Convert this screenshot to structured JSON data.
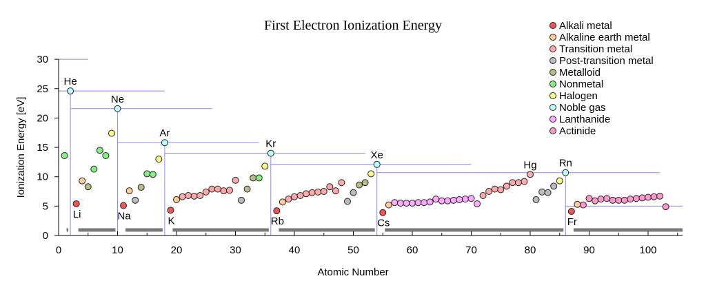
{
  "chart_data": {
    "type": "scatter",
    "title": "First Electron Ionization Energy",
    "xlabel": "Atomic Number",
    "ylabel": "Ionization Energy [eV]",
    "xlim": [
      0,
      105
    ],
    "ylim": [
      0,
      30
    ],
    "xticks": [
      0,
      10,
      20,
      30,
      40,
      50,
      60,
      70,
      80,
      90,
      100
    ],
    "yticks": [
      0,
      5,
      10,
      15,
      20,
      25,
      30
    ],
    "legend_position": "top-right",
    "categories": [
      {
        "key": "alkali",
        "name": "Alkali metal",
        "color": "#ee5555"
      },
      {
        "key": "alkaline",
        "name": "Alkaline earth metal",
        "color": "#ffcc99"
      },
      {
        "key": "transition",
        "name": "Transition metal",
        "color": "#ffaaaa"
      },
      {
        "key": "post",
        "name": "Post-transition metal",
        "color": "#bbbbbb"
      },
      {
        "key": "metalloid",
        "name": "Metalloid",
        "color": "#bbbb88"
      },
      {
        "key": "nonmetal",
        "name": "Nonmetal",
        "color": "#88ee88"
      },
      {
        "key": "halogen",
        "name": "Halogen",
        "color": "#ffff88"
      },
      {
        "key": "noble",
        "name": "Noble gas",
        "color": "#bbffff"
      },
      {
        "key": "lanthanide",
        "name": "Lanthanide",
        "color": "#ffaaff"
      },
      {
        "key": "actinide",
        "name": "Actinide",
        "color": "#ff99cc"
      }
    ],
    "points": [
      {
        "z": 1,
        "e": 13.6,
        "c": "nonmetal"
      },
      {
        "z": 2,
        "e": 24.6,
        "c": "noble",
        "label": "He"
      },
      {
        "z": 3,
        "e": 5.4,
        "c": "alkali",
        "label": "Li"
      },
      {
        "z": 4,
        "e": 9.3,
        "c": "alkaline"
      },
      {
        "z": 5,
        "e": 8.3,
        "c": "metalloid"
      },
      {
        "z": 6,
        "e": 11.3,
        "c": "nonmetal"
      },
      {
        "z": 7,
        "e": 14.5,
        "c": "nonmetal"
      },
      {
        "z": 8,
        "e": 13.6,
        "c": "nonmetal"
      },
      {
        "z": 9,
        "e": 17.4,
        "c": "halogen"
      },
      {
        "z": 10,
        "e": 21.6,
        "c": "noble",
        "label": "Ne"
      },
      {
        "z": 11,
        "e": 5.1,
        "c": "alkali",
        "label": "Na"
      },
      {
        "z": 12,
        "e": 7.6,
        "c": "alkaline"
      },
      {
        "z": 13,
        "e": 6.0,
        "c": "post"
      },
      {
        "z": 14,
        "e": 8.2,
        "c": "metalloid"
      },
      {
        "z": 15,
        "e": 10.5,
        "c": "nonmetal"
      },
      {
        "z": 16,
        "e": 10.4,
        "c": "nonmetal"
      },
      {
        "z": 17,
        "e": 13.0,
        "c": "halogen"
      },
      {
        "z": 18,
        "e": 15.8,
        "c": "noble",
        "label": "Ar"
      },
      {
        "z": 19,
        "e": 4.3,
        "c": "alkali",
        "label": "K"
      },
      {
        "z": 20,
        "e": 6.1,
        "c": "alkaline"
      },
      {
        "z": 21,
        "e": 6.6,
        "c": "transition"
      },
      {
        "z": 22,
        "e": 6.8,
        "c": "transition"
      },
      {
        "z": 23,
        "e": 6.7,
        "c": "transition"
      },
      {
        "z": 24,
        "e": 6.8,
        "c": "transition"
      },
      {
        "z": 25,
        "e": 7.4,
        "c": "transition"
      },
      {
        "z": 26,
        "e": 7.9,
        "c": "transition"
      },
      {
        "z": 27,
        "e": 7.9,
        "c": "transition"
      },
      {
        "z": 28,
        "e": 7.6,
        "c": "transition"
      },
      {
        "z": 29,
        "e": 7.7,
        "c": "transition"
      },
      {
        "z": 30,
        "e": 9.4,
        "c": "transition"
      },
      {
        "z": 31,
        "e": 6.0,
        "c": "post"
      },
      {
        "z": 32,
        "e": 7.9,
        "c": "metalloid"
      },
      {
        "z": 33,
        "e": 9.8,
        "c": "metalloid"
      },
      {
        "z": 34,
        "e": 9.8,
        "c": "nonmetal"
      },
      {
        "z": 35,
        "e": 11.8,
        "c": "halogen"
      },
      {
        "z": 36,
        "e": 14.0,
        "c": "noble",
        "label": "Kr"
      },
      {
        "z": 37,
        "e": 4.2,
        "c": "alkali",
        "label": "Rb"
      },
      {
        "z": 38,
        "e": 5.7,
        "c": "alkaline"
      },
      {
        "z": 39,
        "e": 6.2,
        "c": "transition"
      },
      {
        "z": 40,
        "e": 6.6,
        "c": "transition"
      },
      {
        "z": 41,
        "e": 6.8,
        "c": "transition"
      },
      {
        "z": 42,
        "e": 7.1,
        "c": "transition"
      },
      {
        "z": 43,
        "e": 7.3,
        "c": "transition"
      },
      {
        "z": 44,
        "e": 7.4,
        "c": "transition"
      },
      {
        "z": 45,
        "e": 7.5,
        "c": "transition"
      },
      {
        "z": 46,
        "e": 8.3,
        "c": "transition"
      },
      {
        "z": 47,
        "e": 7.6,
        "c": "transition"
      },
      {
        "z": 48,
        "e": 9.0,
        "c": "transition"
      },
      {
        "z": 49,
        "e": 5.8,
        "c": "post"
      },
      {
        "z": 50,
        "e": 7.3,
        "c": "post"
      },
      {
        "z": 51,
        "e": 8.6,
        "c": "metalloid"
      },
      {
        "z": 52,
        "e": 9.0,
        "c": "metalloid"
      },
      {
        "z": 53,
        "e": 10.5,
        "c": "halogen"
      },
      {
        "z": 54,
        "e": 12.1,
        "c": "noble",
        "label": "Xe"
      },
      {
        "z": 55,
        "e": 3.9,
        "c": "alkali",
        "label": "Cs"
      },
      {
        "z": 56,
        "e": 5.2,
        "c": "alkaline"
      },
      {
        "z": 57,
        "e": 5.6,
        "c": "lanthanide"
      },
      {
        "z": 58,
        "e": 5.5,
        "c": "lanthanide"
      },
      {
        "z": 59,
        "e": 5.5,
        "c": "lanthanide"
      },
      {
        "z": 60,
        "e": 5.5,
        "c": "lanthanide"
      },
      {
        "z": 61,
        "e": 5.6,
        "c": "lanthanide"
      },
      {
        "z": 62,
        "e": 5.6,
        "c": "lanthanide"
      },
      {
        "z": 63,
        "e": 5.7,
        "c": "lanthanide"
      },
      {
        "z": 64,
        "e": 6.2,
        "c": "lanthanide"
      },
      {
        "z": 65,
        "e": 5.9,
        "c": "lanthanide"
      },
      {
        "z": 66,
        "e": 5.9,
        "c": "lanthanide"
      },
      {
        "z": 67,
        "e": 6.0,
        "c": "lanthanide"
      },
      {
        "z": 68,
        "e": 6.1,
        "c": "lanthanide"
      },
      {
        "z": 69,
        "e": 6.2,
        "c": "lanthanide"
      },
      {
        "z": 70,
        "e": 6.3,
        "c": "lanthanide"
      },
      {
        "z": 71,
        "e": 5.4,
        "c": "lanthanide"
      },
      {
        "z": 72,
        "e": 6.8,
        "c": "transition"
      },
      {
        "z": 73,
        "e": 7.5,
        "c": "transition"
      },
      {
        "z": 74,
        "e": 7.9,
        "c": "transition"
      },
      {
        "z": 75,
        "e": 7.8,
        "c": "transition"
      },
      {
        "z": 76,
        "e": 8.4,
        "c": "transition"
      },
      {
        "z": 77,
        "e": 9.0,
        "c": "transition"
      },
      {
        "z": 78,
        "e": 9.0,
        "c": "transition"
      },
      {
        "z": 79,
        "e": 9.2,
        "c": "transition"
      },
      {
        "z": 80,
        "e": 10.4,
        "c": "transition",
        "label": "Hg"
      },
      {
        "z": 81,
        "e": 6.1,
        "c": "post"
      },
      {
        "z": 82,
        "e": 7.4,
        "c": "post"
      },
      {
        "z": 83,
        "e": 7.3,
        "c": "post"
      },
      {
        "z": 84,
        "e": 8.4,
        "c": "post"
      },
      {
        "z": 85,
        "e": 9.3,
        "c": "halogen"
      },
      {
        "z": 86,
        "e": 10.7,
        "c": "noble",
        "label": "Rn"
      },
      {
        "z": 87,
        "e": 4.1,
        "c": "alkali",
        "label": "Fr"
      },
      {
        "z": 88,
        "e": 5.3,
        "c": "alkaline"
      },
      {
        "z": 89,
        "e": 5.2,
        "c": "actinide"
      },
      {
        "z": 90,
        "e": 6.3,
        "c": "actinide"
      },
      {
        "z": 91,
        "e": 5.9,
        "c": "actinide"
      },
      {
        "z": 92,
        "e": 6.2,
        "c": "actinide"
      },
      {
        "z": 93,
        "e": 6.3,
        "c": "actinide"
      },
      {
        "z": 94,
        "e": 6.0,
        "c": "actinide"
      },
      {
        "z": 95,
        "e": 6.0,
        "c": "actinide"
      },
      {
        "z": 96,
        "e": 6.0,
        "c": "actinide"
      },
      {
        "z": 97,
        "e": 6.2,
        "c": "actinide"
      },
      {
        "z": 98,
        "e": 6.3,
        "c": "actinide"
      },
      {
        "z": 99,
        "e": 6.4,
        "c": "actinide"
      },
      {
        "z": 100,
        "e": 6.5,
        "c": "actinide"
      },
      {
        "z": 101,
        "e": 6.6,
        "c": "actinide"
      },
      {
        "z": 102,
        "e": 6.7,
        "c": "actinide"
      },
      {
        "z": 103,
        "e": 4.9,
        "c": "actinide"
      }
    ],
    "period_bars": [
      [
        1,
        2
      ],
      [
        3,
        10
      ],
      [
        11,
        18
      ],
      [
        19,
        36
      ],
      [
        37,
        54
      ],
      [
        55,
        86
      ],
      [
        87,
        118
      ]
    ]
  }
}
